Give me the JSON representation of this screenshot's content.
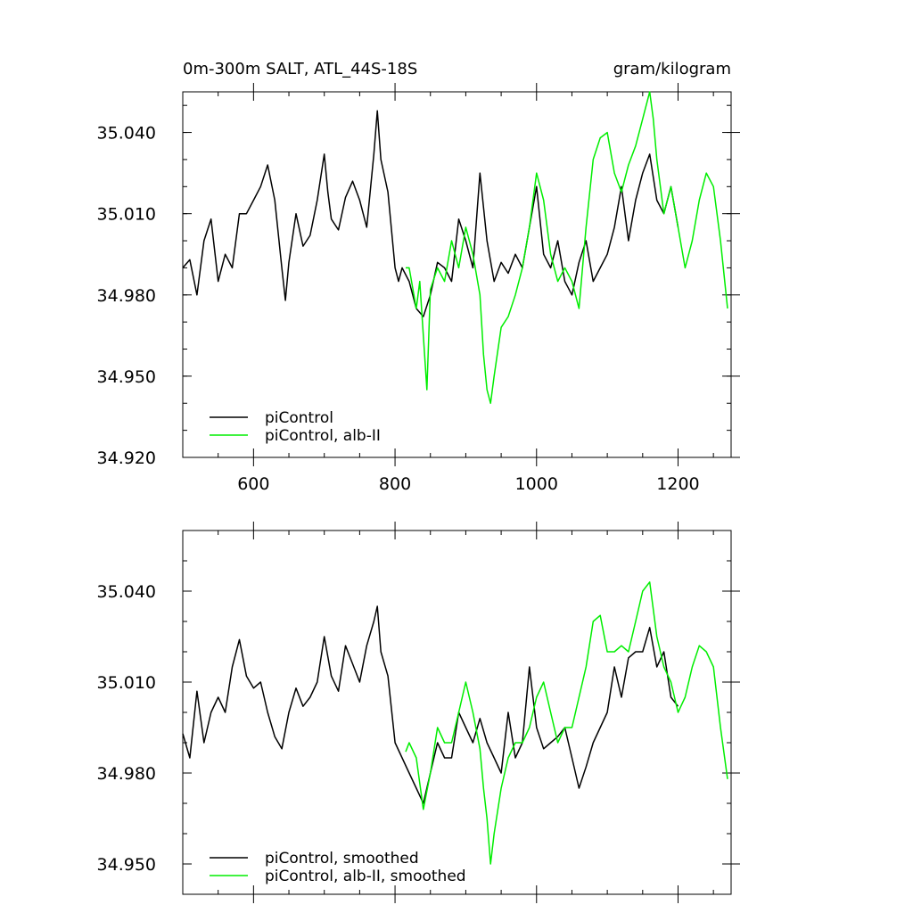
{
  "colors": {
    "piControl": "#000000",
    "alb_II": "#00ee00"
  },
  "chart_data": [
    {
      "type": "line",
      "title_left": "0m-300m SALT, ATL_44S-18S",
      "title_right": "gram/kilogram",
      "xlabel": "",
      "ylabel": "",
      "xlim": [
        500,
        1275
      ],
      "ylim": [
        34.92,
        35.055
      ],
      "x_major_ticks": [
        600,
        800,
        1000,
        1200
      ],
      "x_tick_labels": [
        "600",
        "800",
        "1000",
        "1200"
      ],
      "y_major_ticks": [
        34.92,
        34.95,
        34.98,
        35.01,
        35.04
      ],
      "y_tick_labels": [
        "34.920",
        "34.950",
        "34.980",
        "35.010",
        "35.040"
      ],
      "legend_position": "bottom-left",
      "series": [
        {
          "name": "piControl",
          "color": "#000000",
          "x": [
            500,
            510,
            520,
            530,
            540,
            550,
            560,
            570,
            580,
            590,
            600,
            610,
            620,
            630,
            640,
            645,
            650,
            660,
            670,
            680,
            690,
            700,
            705,
            710,
            720,
            730,
            740,
            750,
            760,
            770,
            775,
            780,
            790,
            800,
            805,
            810,
            820,
            830,
            840,
            850,
            860,
            870,
            880,
            890,
            900,
            910,
            920,
            930,
            940,
            950,
            960,
            970,
            980,
            990,
            1000,
            1010,
            1020,
            1030,
            1040,
            1050,
            1060,
            1070,
            1080,
            1090,
            1100,
            1110,
            1120,
            1130,
            1140,
            1150,
            1160,
            1170,
            1180,
            1190,
            1200
          ],
          "values": [
            34.99,
            34.993,
            34.98,
            35.0,
            35.008,
            34.985,
            34.995,
            34.99,
            35.01,
            35.01,
            35.015,
            35.02,
            35.028,
            35.015,
            34.99,
            34.978,
            34.992,
            35.01,
            34.998,
            35.002,
            35.015,
            35.032,
            35.018,
            35.008,
            35.004,
            35.016,
            35.022,
            35.015,
            35.005,
            35.032,
            35.048,
            35.03,
            35.018,
            34.99,
            34.985,
            34.99,
            34.985,
            34.975,
            34.972,
            34.98,
            34.992,
            34.99,
            34.985,
            35.008,
            35.0,
            34.99,
            35.025,
            35.0,
            34.985,
            34.992,
            34.988,
            34.995,
            34.99,
            35.005,
            35.02,
            34.995,
            34.99,
            35.0,
            34.985,
            34.98,
            34.992,
            35.0,
            34.985,
            34.99,
            34.995,
            35.005,
            35.02,
            35.0,
            35.015,
            35.025,
            35.032,
            35.015,
            35.01,
            35.02,
            35.005
          ]
        },
        {
          "name": "piControl, alb-II",
          "color": "#00ee00",
          "x": [
            815,
            820,
            830,
            835,
            840,
            845,
            850,
            860,
            870,
            880,
            890,
            900,
            910,
            920,
            925,
            930,
            935,
            940,
            950,
            960,
            970,
            980,
            990,
            1000,
            1010,
            1020,
            1030,
            1040,
            1050,
            1060,
            1070,
            1080,
            1090,
            1100,
            1110,
            1120,
            1130,
            1140,
            1150,
            1160,
            1165,
            1170,
            1180,
            1190,
            1200,
            1210,
            1220,
            1230,
            1240,
            1250,
            1260,
            1270
          ],
          "values": [
            34.99,
            34.99,
            34.975,
            34.985,
            34.965,
            34.945,
            34.982,
            34.99,
            34.985,
            35.0,
            34.99,
            35.005,
            34.995,
            34.98,
            34.958,
            34.945,
            34.94,
            34.95,
            34.968,
            34.972,
            34.98,
            34.99,
            35.005,
            35.025,
            35.015,
            34.995,
            34.985,
            34.99,
            34.985,
            34.975,
            35.005,
            35.03,
            35.038,
            35.04,
            35.025,
            35.018,
            35.028,
            35.035,
            35.045,
            35.055,
            35.045,
            35.03,
            35.01,
            35.02,
            35.005,
            34.99,
            35.0,
            35.015,
            35.025,
            35.02,
            35.0,
            34.975
          ]
        }
      ]
    },
    {
      "type": "line",
      "title_left": "",
      "title_right": "",
      "xlabel": "",
      "ylabel": "",
      "xlim": [
        500,
        1275
      ],
      "ylim": [
        34.94,
        35.06
      ],
      "x_major_ticks": [
        600,
        800,
        1000,
        1200
      ],
      "x_tick_labels": [
        "",
        "",
        "",
        ""
      ],
      "y_major_ticks": [
        34.95,
        34.98,
        35.01,
        35.04
      ],
      "y_tick_labels": [
        "34.950",
        "34.980",
        "35.010",
        "35.040"
      ],
      "legend_position": "bottom-left",
      "series": [
        {
          "name": "piControl, smoothed",
          "color": "#000000",
          "x": [
            500,
            510,
            520,
            530,
            540,
            550,
            560,
            570,
            580,
            590,
            600,
            610,
            620,
            630,
            640,
            650,
            660,
            670,
            680,
            690,
            700,
            710,
            720,
            730,
            740,
            750,
            760,
            770,
            775,
            780,
            790,
            800,
            810,
            820,
            830,
            840,
            850,
            860,
            870,
            880,
            890,
            900,
            910,
            920,
            930,
            940,
            950,
            960,
            970,
            980,
            990,
            1000,
            1010,
            1020,
            1030,
            1040,
            1050,
            1060,
            1070,
            1080,
            1090,
            1100,
            1110,
            1120,
            1130,
            1140,
            1150,
            1160,
            1170,
            1180,
            1190,
            1200
          ],
          "values": [
            34.993,
            34.985,
            35.007,
            34.99,
            35.0,
            35.005,
            35.0,
            35.015,
            35.024,
            35.012,
            35.008,
            35.01,
            35.0,
            34.992,
            34.988,
            35.0,
            35.008,
            35.002,
            35.005,
            35.01,
            35.025,
            35.012,
            35.007,
            35.022,
            35.016,
            35.01,
            35.022,
            35.03,
            35.035,
            35.02,
            35.012,
            34.99,
            34.985,
            34.98,
            34.975,
            34.97,
            34.98,
            34.99,
            34.985,
            34.985,
            35.0,
            34.995,
            34.99,
            34.998,
            34.99,
            34.985,
            34.98,
            35.0,
            34.985,
            34.99,
            35.015,
            34.995,
            34.988,
            34.99,
            34.992,
            34.995,
            34.985,
            34.975,
            34.982,
            34.99,
            34.995,
            35.0,
            35.015,
            35.005,
            35.018,
            35.02,
            35.02,
            35.028,
            35.015,
            35.02,
            35.005,
            35.002
          ]
        },
        {
          "name": "piControl, alb-II, smoothed",
          "color": "#00ee00",
          "x": [
            815,
            820,
            830,
            840,
            850,
            860,
            870,
            880,
            890,
            900,
            910,
            920,
            925,
            930,
            935,
            940,
            950,
            960,
            970,
            980,
            990,
            1000,
            1010,
            1020,
            1030,
            1040,
            1050,
            1060,
            1070,
            1080,
            1090,
            1100,
            1110,
            1120,
            1130,
            1140,
            1150,
            1160,
            1170,
            1180,
            1190,
            1200,
            1210,
            1220,
            1230,
            1240,
            1250,
            1260,
            1270
          ],
          "values": [
            34.987,
            34.99,
            34.985,
            34.968,
            34.98,
            34.995,
            34.99,
            34.99,
            35.0,
            35.01,
            35.0,
            34.988,
            34.975,
            34.965,
            34.95,
            34.96,
            34.975,
            34.985,
            34.99,
            34.99,
            34.995,
            35.005,
            35.01,
            35.0,
            34.99,
            34.995,
            34.995,
            35.005,
            35.015,
            35.03,
            35.032,
            35.02,
            35.02,
            35.022,
            35.02,
            35.03,
            35.04,
            35.043,
            35.025,
            35.015,
            35.01,
            35.0,
            35.005,
            35.015,
            35.022,
            35.02,
            35.015,
            34.995,
            34.978
          ]
        }
      ]
    }
  ]
}
